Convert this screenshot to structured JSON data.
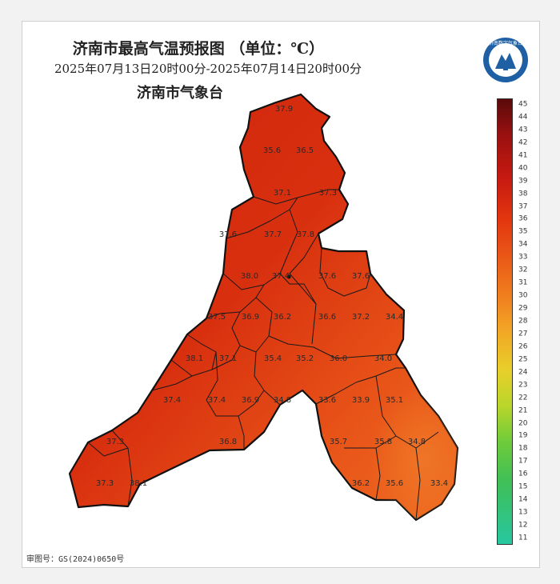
{
  "title": "济南市最高气温预报图 （单位：℃）",
  "period": "2025年07月13日20时00分-2025年07月14日20时00分",
  "agency": "济南市气象台",
  "logo_text": "济南数字气象台",
  "approval": "审图号：GS(2024)0650号",
  "colorbar": {
    "min": 11,
    "max": 45,
    "ticks": [
      "45",
      "44",
      "43",
      "42",
      "41",
      "40",
      "39",
      "38",
      "37",
      "36",
      "35",
      "34",
      "33",
      "32",
      "31",
      "30",
      "29",
      "28",
      "27",
      "26",
      "25",
      "24",
      "23",
      "22",
      "21",
      "20",
      "19",
      "18",
      "17",
      "16",
      "15",
      "14",
      "13",
      "12",
      "11"
    ]
  },
  "colors": {
    "hot": "#d6280e",
    "warm": "#ea5a1a",
    "milder": "#ee6a22",
    "border": "#111111"
  },
  "stations": [
    {
      "label": "37.9"
    },
    {
      "label": "35.6"
    },
    {
      "label": "36.5"
    },
    {
      "label": "37.1"
    },
    {
      "label": "37.3"
    },
    {
      "label": "37.6"
    },
    {
      "label": "37.7"
    },
    {
      "label": "37.8"
    },
    {
      "label": "38.0"
    },
    {
      "label": "37.4"
    },
    {
      "label": "37.6"
    },
    {
      "label": "37.6"
    },
    {
      "label": "37.5"
    },
    {
      "label": "36.9"
    },
    {
      "label": "36.2"
    },
    {
      "label": "36.6"
    },
    {
      "label": "37.2"
    },
    {
      "label": "34.4"
    },
    {
      "label": "38.1"
    },
    {
      "label": "37.1"
    },
    {
      "label": "35.4"
    },
    {
      "label": "35.2"
    },
    {
      "label": "36.0"
    },
    {
      "label": "34.0"
    },
    {
      "label": "37.4"
    },
    {
      "label": "37.4"
    },
    {
      "label": "36.9"
    },
    {
      "label": "34.8"
    },
    {
      "label": "33.6"
    },
    {
      "label": "33.9"
    },
    {
      "label": "35.1"
    },
    {
      "label": "37.3"
    },
    {
      "label": "36.8"
    },
    {
      "label": "35.7"
    },
    {
      "label": "35.8"
    },
    {
      "label": "34.8"
    },
    {
      "label": "37.3"
    },
    {
      "label": "38.1"
    },
    {
      "label": "36.2"
    },
    {
      "label": "35.6"
    },
    {
      "label": "33.4"
    }
  ]
}
